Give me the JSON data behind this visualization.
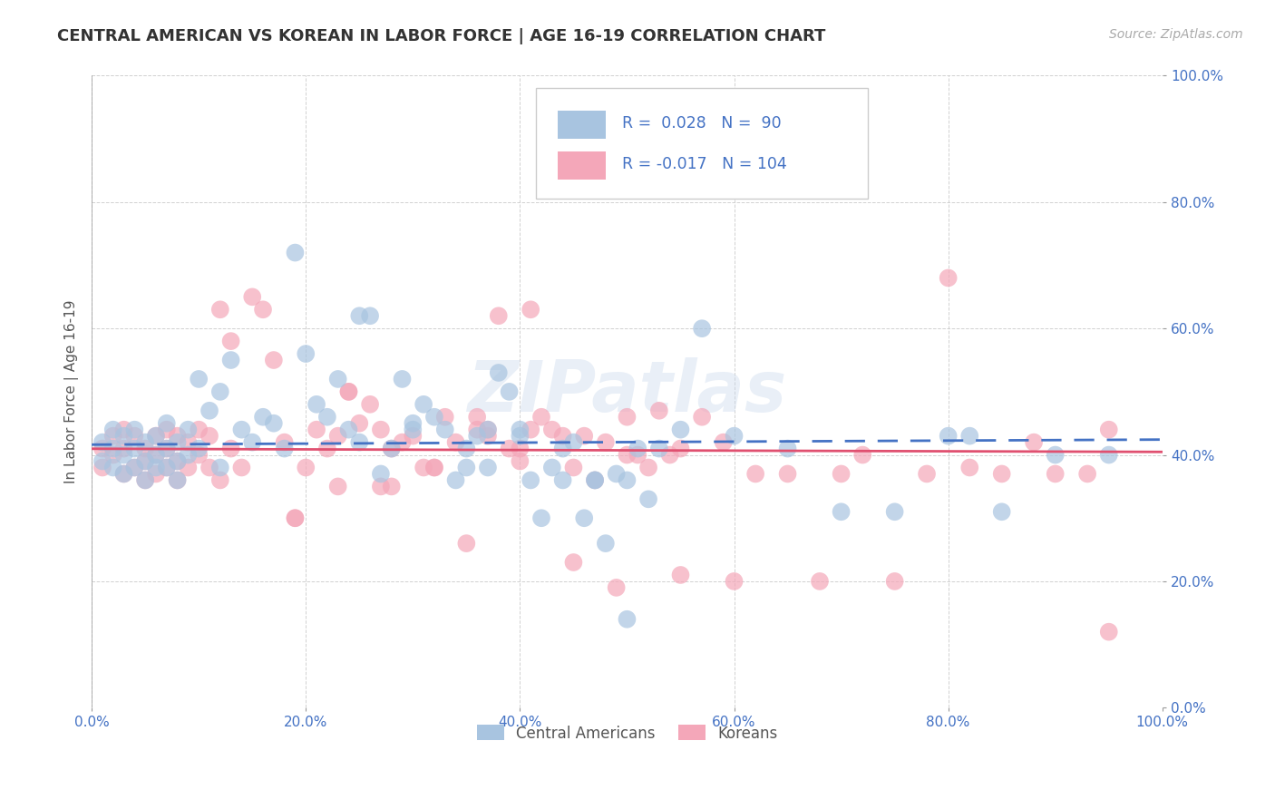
{
  "title": "CENTRAL AMERICAN VS KOREAN IN LABOR FORCE | AGE 16-19 CORRELATION CHART",
  "source": "Source: ZipAtlas.com",
  "ylabel": "In Labor Force | Age 16-19",
  "xlim": [
    0.0,
    1.0
  ],
  "ylim": [
    0.0,
    1.0
  ],
  "xtick_vals": [
    0.0,
    0.2,
    0.4,
    0.6,
    0.8,
    1.0
  ],
  "ytick_vals": [
    0.0,
    0.2,
    0.4,
    0.6,
    0.8,
    1.0
  ],
  "xtick_labels": [
    "0.0%",
    "20.0%",
    "40.0%",
    "60.0%",
    "80.0%",
    "100.0%"
  ],
  "ytick_labels": [
    "0.0%",
    "20.0%",
    "40.0%",
    "60.0%",
    "80.0%",
    "100.0%"
  ],
  "watermark": "ZIPatlas",
  "blue_R": 0.028,
  "blue_N": 90,
  "pink_R": -0.017,
  "pink_N": 104,
  "blue_color": "#a8c4e0",
  "pink_color": "#f4a7b9",
  "blue_line_color": "#4472c4",
  "pink_line_color": "#e05070",
  "tick_color": "#4472c4",
  "legend_blue_label": "Central Americans",
  "legend_pink_label": "Koreans",
  "blue_scatter_x": [
    0.01,
    0.01,
    0.02,
    0.02,
    0.02,
    0.03,
    0.03,
    0.03,
    0.04,
    0.04,
    0.04,
    0.05,
    0.05,
    0.05,
    0.06,
    0.06,
    0.06,
    0.07,
    0.07,
    0.07,
    0.08,
    0.08,
    0.08,
    0.09,
    0.09,
    0.1,
    0.1,
    0.11,
    0.12,
    0.12,
    0.13,
    0.14,
    0.15,
    0.16,
    0.17,
    0.18,
    0.19,
    0.2,
    0.21,
    0.22,
    0.23,
    0.24,
    0.25,
    0.26,
    0.27,
    0.28,
    0.29,
    0.3,
    0.31,
    0.32,
    0.33,
    0.34,
    0.35,
    0.36,
    0.37,
    0.38,
    0.39,
    0.4,
    0.41,
    0.42,
    0.43,
    0.44,
    0.45,
    0.46,
    0.47,
    0.48,
    0.49,
    0.5,
    0.51,
    0.52,
    0.55,
    0.6,
    0.65,
    0.7,
    0.75,
    0.8,
    0.82,
    0.85,
    0.9,
    0.95,
    0.25,
    0.3,
    0.35,
    0.37,
    0.4,
    0.44,
    0.47,
    0.5,
    0.53,
    0.57
  ],
  "blue_scatter_y": [
    0.42,
    0.39,
    0.44,
    0.41,
    0.38,
    0.43,
    0.4,
    0.37,
    0.41,
    0.38,
    0.44,
    0.42,
    0.39,
    0.36,
    0.43,
    0.4,
    0.38,
    0.45,
    0.41,
    0.38,
    0.42,
    0.39,
    0.36,
    0.44,
    0.4,
    0.52,
    0.41,
    0.47,
    0.5,
    0.38,
    0.55,
    0.44,
    0.42,
    0.46,
    0.45,
    0.41,
    0.72,
    0.56,
    0.48,
    0.46,
    0.52,
    0.44,
    0.42,
    0.62,
    0.37,
    0.41,
    0.52,
    0.45,
    0.48,
    0.46,
    0.44,
    0.36,
    0.41,
    0.43,
    0.38,
    0.53,
    0.5,
    0.44,
    0.36,
    0.3,
    0.38,
    0.36,
    0.42,
    0.3,
    0.36,
    0.26,
    0.37,
    0.14,
    0.41,
    0.33,
    0.44,
    0.43,
    0.41,
    0.31,
    0.31,
    0.43,
    0.43,
    0.31,
    0.4,
    0.4,
    0.62,
    0.44,
    0.38,
    0.44,
    0.43,
    0.41,
    0.36,
    0.36,
    0.41,
    0.6
  ],
  "pink_scatter_x": [
    0.01,
    0.01,
    0.02,
    0.02,
    0.03,
    0.03,
    0.03,
    0.04,
    0.04,
    0.05,
    0.05,
    0.05,
    0.06,
    0.06,
    0.06,
    0.07,
    0.07,
    0.07,
    0.08,
    0.08,
    0.08,
    0.09,
    0.09,
    0.1,
    0.1,
    0.11,
    0.11,
    0.12,
    0.12,
    0.13,
    0.13,
    0.14,
    0.15,
    0.16,
    0.17,
    0.18,
    0.19,
    0.2,
    0.21,
    0.22,
    0.23,
    0.24,
    0.25,
    0.26,
    0.27,
    0.28,
    0.29,
    0.3,
    0.31,
    0.32,
    0.33,
    0.34,
    0.35,
    0.36,
    0.37,
    0.38,
    0.39,
    0.4,
    0.41,
    0.42,
    0.43,
    0.44,
    0.45,
    0.46,
    0.47,
    0.48,
    0.49,
    0.5,
    0.51,
    0.52,
    0.53,
    0.54,
    0.55,
    0.57,
    0.59,
    0.6,
    0.62,
    0.65,
    0.68,
    0.7,
    0.72,
    0.75,
    0.78,
    0.8,
    0.82,
    0.85,
    0.88,
    0.9,
    0.93,
    0.95,
    0.24,
    0.28,
    0.32,
    0.37,
    0.41,
    0.45,
    0.5,
    0.55,
    0.19,
    0.23,
    0.27,
    0.36,
    0.4,
    0.95
  ],
  "pink_scatter_y": [
    0.41,
    0.38,
    0.43,
    0.4,
    0.44,
    0.41,
    0.37,
    0.43,
    0.38,
    0.41,
    0.39,
    0.36,
    0.43,
    0.4,
    0.37,
    0.44,
    0.41,
    0.38,
    0.43,
    0.39,
    0.36,
    0.42,
    0.38,
    0.44,
    0.4,
    0.43,
    0.38,
    0.63,
    0.36,
    0.41,
    0.58,
    0.38,
    0.65,
    0.63,
    0.55,
    0.42,
    0.3,
    0.38,
    0.44,
    0.41,
    0.43,
    0.5,
    0.45,
    0.48,
    0.44,
    0.41,
    0.42,
    0.43,
    0.38,
    0.38,
    0.46,
    0.42,
    0.26,
    0.44,
    0.43,
    0.62,
    0.41,
    0.39,
    0.44,
    0.46,
    0.44,
    0.43,
    0.38,
    0.43,
    0.36,
    0.42,
    0.19,
    0.4,
    0.4,
    0.38,
    0.47,
    0.4,
    0.41,
    0.46,
    0.42,
    0.2,
    0.37,
    0.37,
    0.2,
    0.37,
    0.4,
    0.2,
    0.37,
    0.68,
    0.38,
    0.37,
    0.42,
    0.37,
    0.37,
    0.44,
    0.5,
    0.35,
    0.38,
    0.44,
    0.63,
    0.23,
    0.46,
    0.21,
    0.3,
    0.35,
    0.35,
    0.46,
    0.41,
    0.12
  ]
}
